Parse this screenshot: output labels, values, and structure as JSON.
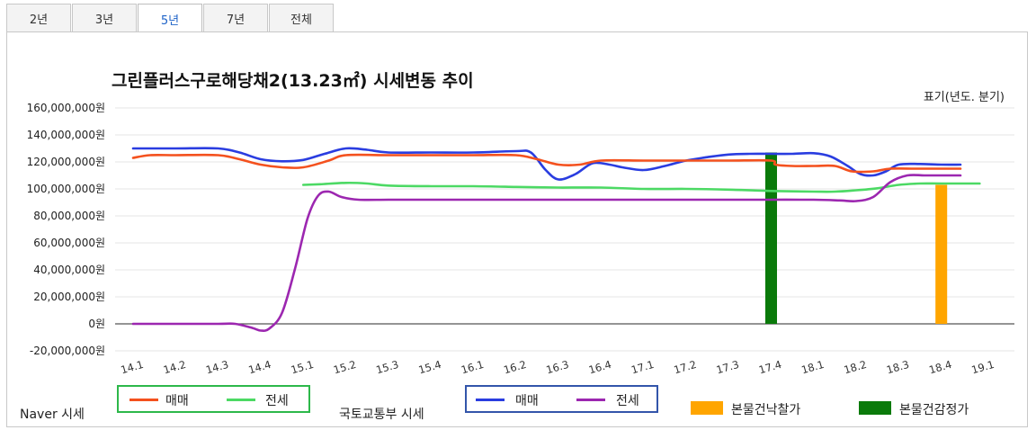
{
  "tabs": [
    {
      "label": "2년",
      "active": false
    },
    {
      "label": "3년",
      "active": false
    },
    {
      "label": "5년",
      "active": true
    },
    {
      "label": "7년",
      "active": false
    },
    {
      "label": "전체",
      "active": false
    }
  ],
  "colors": {
    "naver_sale": "#f4511e",
    "naver_jeonse": "#4cd964",
    "molit_sale": "#2a3de0",
    "molit_jeonse": "#9c27b0",
    "auction_bid": "#ffa500",
    "appraisal": "#0a7a0a",
    "naver_box_border": "#2db84a",
    "molit_box_border": "#3355aa"
  },
  "chart_data": {
    "type": "line",
    "title": "그린플러스구로해당채2(13.23㎡) 시세변동 추이",
    "notation": "표기(년도. 분기)",
    "x": [
      "14.1",
      "14.2",
      "14.3",
      "14.4",
      "15.1",
      "15.2",
      "15.3",
      "15.4",
      "16.1",
      "16.2",
      "16.3",
      "16.4",
      "17.1",
      "17.2",
      "17.3",
      "17.4",
      "18.1",
      "18.2",
      "18.3",
      "18.4",
      "19.1"
    ],
    "y_ticks": [
      "160,000,000원",
      "140,000,000원",
      "120,000,000원",
      "100,000,000원",
      "80,000,000원",
      "60,000,000원",
      "40,000,000원",
      "20,000,000원",
      "0원",
      "-20,000,000원"
    ],
    "ylim": [
      -20000000,
      160000000
    ],
    "series": [
      {
        "name": "Naver 시세 매매",
        "color_key": "naver_sale",
        "points": [
          [
            0,
            123000000
          ],
          [
            0.4,
            125000000
          ],
          [
            1,
            125000000
          ],
          [
            2,
            125000000
          ],
          [
            2.5,
            122000000
          ],
          [
            3,
            118000000
          ],
          [
            3.5,
            116000000
          ],
          [
            4,
            116000000
          ],
          [
            4.6,
            121000000
          ],
          [
            5,
            125000000
          ],
          [
            6,
            125000000
          ],
          [
            7,
            125000000
          ],
          [
            8,
            125000000
          ],
          [
            9,
            125000000
          ],
          [
            9.5,
            122000000
          ],
          [
            10,
            118000000
          ],
          [
            10.5,
            118000000
          ],
          [
            11,
            121000000
          ],
          [
            12,
            121000000
          ],
          [
            13,
            121000000
          ],
          [
            14,
            121000000
          ],
          [
            15,
            121000000
          ],
          [
            15.1,
            118000000
          ],
          [
            15.5,
            117000000
          ],
          [
            16,
            117000000
          ],
          [
            16.5,
            117000000
          ],
          [
            16.9,
            113000000
          ],
          [
            17.4,
            113000000
          ],
          [
            17.8,
            115000000
          ],
          [
            18.4,
            115000000
          ],
          [
            19,
            115000000
          ],
          [
            19.45,
            115000000
          ]
        ]
      },
      {
        "name": "Naver 시세 전세",
        "color_key": "naver_jeonse",
        "points": [
          [
            4,
            103000000
          ],
          [
            4.4,
            103500000
          ],
          [
            5,
            104500000
          ],
          [
            5.5,
            104000000
          ],
          [
            6,
            102500000
          ],
          [
            7,
            102000000
          ],
          [
            8,
            102000000
          ],
          [
            9,
            101500000
          ],
          [
            10,
            101000000
          ],
          [
            11,
            101000000
          ],
          [
            12,
            100000000
          ],
          [
            13,
            100000000
          ],
          [
            14,
            99500000
          ],
          [
            15,
            98500000
          ],
          [
            16,
            98000000
          ],
          [
            16.5,
            98000000
          ],
          [
            17,
            99000000
          ],
          [
            17.5,
            100500000
          ],
          [
            18,
            103000000
          ],
          [
            18.5,
            104000000
          ],
          [
            19,
            104000000
          ],
          [
            19.9,
            104000000
          ]
        ]
      },
      {
        "name": "국토교통부 시세 매매",
        "color_key": "molit_sale",
        "points": [
          [
            0,
            130000000
          ],
          [
            1,
            130000000
          ],
          [
            2,
            130000000
          ],
          [
            2.5,
            127000000
          ],
          [
            3,
            122000000
          ],
          [
            3.5,
            120500000
          ],
          [
            4,
            121500000
          ],
          [
            4.5,
            126000000
          ],
          [
            5,
            130000000
          ],
          [
            5.5,
            129000000
          ],
          [
            6,
            127000000
          ],
          [
            7,
            127000000
          ],
          [
            8,
            127000000
          ],
          [
            9,
            128000000
          ],
          [
            9.35,
            127000000
          ],
          [
            9.7,
            114000000
          ],
          [
            10,
            107000000
          ],
          [
            10.4,
            111000000
          ],
          [
            10.8,
            119000000
          ],
          [
            11.2,
            118000000
          ],
          [
            11.5,
            116000000
          ],
          [
            12,
            114000000
          ],
          [
            12.5,
            117000000
          ],
          [
            13,
            121000000
          ],
          [
            13.5,
            123500000
          ],
          [
            14,
            125500000
          ],
          [
            14.5,
            126000000
          ],
          [
            15,
            126000000
          ],
          [
            15.5,
            126000000
          ],
          [
            16,
            126500000
          ],
          [
            16.4,
            124000000
          ],
          [
            16.8,
            117000000
          ],
          [
            17.1,
            111000000
          ],
          [
            17.4,
            110000000
          ],
          [
            17.7,
            113000000
          ],
          [
            18,
            118000000
          ],
          [
            18.5,
            118500000
          ],
          [
            19,
            118000000
          ],
          [
            19.45,
            118000000
          ]
        ]
      },
      {
        "name": "국토교통부 시세 전세",
        "color_key": "molit_jeonse",
        "points": [
          [
            0,
            0
          ],
          [
            0.5,
            0
          ],
          [
            1,
            0
          ],
          [
            2,
            0
          ],
          [
            2.4,
            0
          ],
          [
            2.8,
            -3000000
          ],
          [
            3,
            -5000000
          ],
          [
            3.2,
            -3500000
          ],
          [
            3.5,
            8000000
          ],
          [
            3.8,
            40000000
          ],
          [
            4.1,
            78000000
          ],
          [
            4.35,
            95000000
          ],
          [
            4.6,
            98000000
          ],
          [
            4.9,
            94000000
          ],
          [
            5.3,
            92000000
          ],
          [
            6,
            92000000
          ],
          [
            7,
            92000000
          ],
          [
            8,
            92000000
          ],
          [
            9,
            92000000
          ],
          [
            10,
            92000000
          ],
          [
            11,
            92000000
          ],
          [
            12,
            92000000
          ],
          [
            13,
            92000000
          ],
          [
            14,
            92000000
          ],
          [
            15,
            92000000
          ],
          [
            16,
            92000000
          ],
          [
            16.6,
            91500000
          ],
          [
            17,
            91000000
          ],
          [
            17.4,
            94000000
          ],
          [
            17.8,
            105000000
          ],
          [
            18.2,
            110000000
          ],
          [
            18.6,
            110000000
          ],
          [
            19,
            110000000
          ],
          [
            19.45,
            110000000
          ]
        ]
      }
    ],
    "bars": [
      {
        "name": "본물건감정가",
        "color_key": "appraisal",
        "x": 15,
        "value": 127000000
      },
      {
        "name": "본물건낙찰가",
        "color_key": "auction_bid",
        "x": 19,
        "value": 103000000
      }
    ],
    "grid": true
  },
  "legend": {
    "naver_group_label": "Naver 시세",
    "naver_sale_label": "매매",
    "naver_jeonse_label": "전세",
    "molit_group_label": "국토교통부 시세",
    "molit_sale_label": "매매",
    "molit_jeonse_label": "전세",
    "auction_bid_label": "본물건낙찰가",
    "appraisal_label": "본물건감정가"
  }
}
